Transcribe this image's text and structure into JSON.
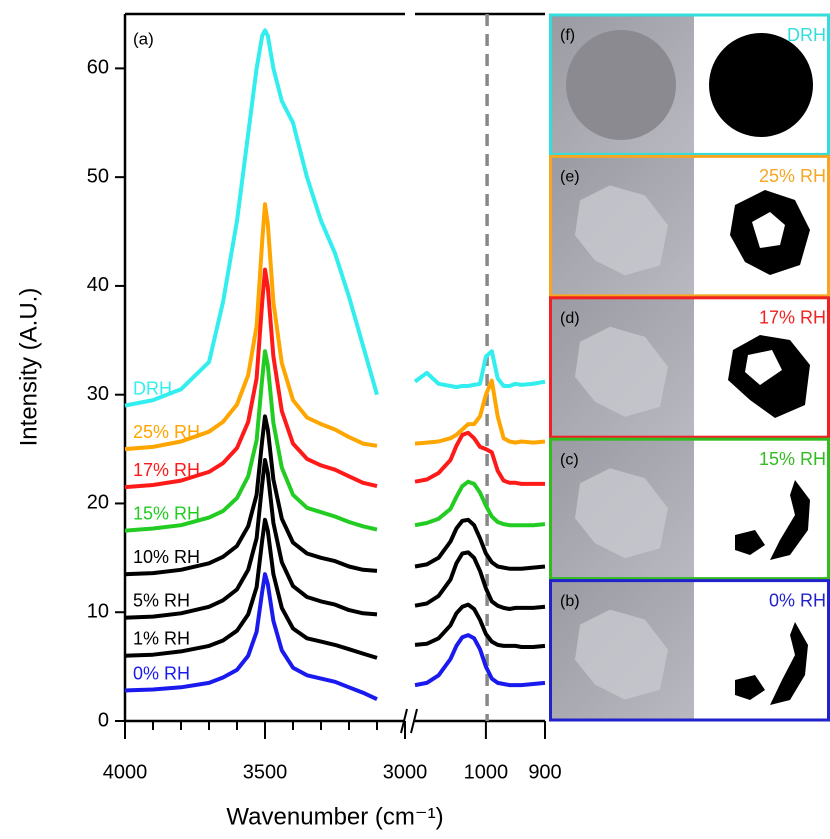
{
  "chart_data": [
    {
      "type": "line",
      "panel_label": "(a)",
      "ylabel": "Intensity (A.U.)",
      "xlabel": "Wavenumber (cm⁻¹)",
      "xlim": [
        4000,
        3000
      ],
      "xticks": [
        4000,
        3500,
        3000
      ],
      "xminorticks": [
        3900,
        3800,
        3700,
        3600,
        3400,
        3300,
        3200,
        3100
      ],
      "ylim": [
        0,
        65
      ],
      "yticks": [
        0,
        10,
        20,
        30,
        40,
        50,
        60
      ],
      "x": [
        4000,
        3900,
        3800,
        3700,
        3650,
        3600,
        3560,
        3530,
        3510,
        3500,
        3490,
        3470,
        3440,
        3400,
        3350,
        3300,
        3250,
        3200,
        3150,
        3100
      ],
      "series": [
        {
          "name": "DRH",
          "color": "#33eeee",
          "values": [
            29,
            29.5,
            30.5,
            33,
            38.5,
            46,
            54,
            60,
            63,
            63.5,
            63,
            60,
            57,
            55,
            50,
            46,
            43,
            39,
            34.5,
            30
          ]
        },
        {
          "name": "25% RH",
          "color": "#ffa500",
          "values": [
            25,
            25.2,
            25.7,
            26.6,
            27.5,
            29.1,
            31.8,
            36.3,
            44.1,
            47.5,
            45.7,
            38.5,
            32.9,
            29.5,
            27.9,
            27.3,
            26.8,
            26.1,
            25.5,
            25.3
          ]
        },
        {
          "name": "17% RH",
          "color": "#ff1a1a",
          "values": [
            21.5,
            21.7,
            22.1,
            22.9,
            23.7,
            25.1,
            27.5,
            31.5,
            38.5,
            41.5,
            39.9,
            33.5,
            28.5,
            25.5,
            24.1,
            23.5,
            23.1,
            22.5,
            21.9,
            21.6
          ]
        },
        {
          "name": "15% RH",
          "color": "#22cc22",
          "values": [
            17.5,
            17.7,
            18,
            18.7,
            19.3,
            20.5,
            22.5,
            25.8,
            31.5,
            34,
            32.7,
            27.4,
            23.3,
            20.8,
            19.6,
            19.2,
            18.8,
            18.3,
            17.9,
            17.6
          ]
        },
        {
          "name": "10% RH",
          "color": "#000000",
          "values": [
            13.5,
            13.6,
            13.9,
            14.5,
            15.1,
            16.1,
            17.9,
            20.8,
            25.8,
            28,
            26.8,
            22.2,
            18.6,
            16.4,
            15.4,
            15,
            14.7,
            14.2,
            13.9,
            13.8
          ]
        },
        {
          "name": "5% RH",
          "color": "#000000",
          "values": [
            9.5,
            9.6,
            9.9,
            10.5,
            11.1,
            12.1,
            13.9,
            16.8,
            21.8,
            24,
            22.8,
            18.2,
            14.6,
            12.4,
            11.4,
            11,
            10.7,
            10.2,
            9.9,
            9.8
          ]
        },
        {
          "name": "1% RH",
          "color": "#000000",
          "values": [
            6,
            6.1,
            6.4,
            6.9,
            7.4,
            8.3,
            9.8,
            12.3,
            16.6,
            18.5,
            17.5,
            13.5,
            10.4,
            8.5,
            7.6,
            7.3,
            7,
            6.6,
            6.2,
            5.8
          ]
        },
        {
          "name": "0% RH",
          "color": "#1a1aee",
          "values": [
            2.8,
            2.9,
            3.1,
            3.5,
            4,
            4.7,
            6,
            8.2,
            11.9,
            13.5,
            12.6,
            9.2,
            6.5,
            4.9,
            4.2,
            3.9,
            3.6,
            3.1,
            2.6,
            2
          ]
        }
      ]
    },
    {
      "type": "line",
      "xlim": [
        1120,
        900
      ],
      "xticks": [
        1000,
        900
      ],
      "ylim": [
        0,
        65
      ],
      "vlines": [
        998
      ],
      "x": [
        1120,
        1100,
        1080,
        1060,
        1050,
        1040,
        1030,
        1020,
        1010,
        1000,
        990,
        980,
        970,
        960,
        950,
        940,
        920,
        900
      ],
      "series": [
        {
          "color": "#33eeee",
          "values": [
            31.2,
            32,
            31,
            30.8,
            30.7,
            30.8,
            30.8,
            30.9,
            31,
            33.5,
            34,
            31.5,
            30.8,
            30.8,
            31,
            30.9,
            31,
            31.2
          ]
        },
        {
          "color": "#ffa500",
          "values": [
            25.5,
            25.6,
            25.7,
            26,
            26.3,
            26.8,
            27.3,
            27.3,
            28,
            30,
            31.3,
            28,
            26,
            25.7,
            25.6,
            25.7,
            25.6,
            25.7
          ]
        },
        {
          "color": "#ff1a1a",
          "values": [
            22,
            22.2,
            22.8,
            24,
            25.3,
            26.3,
            26.5,
            26,
            25.2,
            25,
            24.7,
            23,
            22.1,
            21.9,
            21.9,
            21.8,
            21.8,
            21.8
          ]
        },
        {
          "color": "#22cc22",
          "values": [
            18,
            18.2,
            18.6,
            19.5,
            20.6,
            21.6,
            22,
            21.8,
            21,
            19.8,
            18.8,
            18.3,
            18.1,
            18,
            18,
            18,
            18,
            18.1
          ]
        },
        {
          "color": "#000000",
          "values": [
            14.2,
            14.4,
            15,
            16.5,
            17.7,
            18.4,
            18.5,
            18,
            16.8,
            15.4,
            14.6,
            14.2,
            14.1,
            14,
            14,
            14,
            14.1,
            14.2
          ]
        },
        {
          "color": "#000000",
          "values": [
            10.6,
            10.8,
            11.5,
            13,
            14.5,
            15.4,
            15.5,
            15,
            13.8,
            12.2,
            11,
            10.6,
            10.4,
            10.3,
            10.4,
            10.4,
            10.4,
            10.5
          ]
        },
        {
          "color": "#000000",
          "values": [
            7,
            7.1,
            7.6,
            8.8,
            9.9,
            10.5,
            10.7,
            10.3,
            9.3,
            8,
            7.3,
            7,
            6.9,
            6.9,
            6.9,
            6.8,
            6.8,
            6.9
          ]
        },
        {
          "color": "#1a1aee",
          "values": [
            3.3,
            3.5,
            4.2,
            5.7,
            6.9,
            7.7,
            7.9,
            7.6,
            6.6,
            5,
            3.9,
            3.5,
            3.4,
            3.3,
            3.3,
            3.3,
            3.4,
            3.5
          ]
        }
      ]
    }
  ],
  "panels": [
    {
      "letter": "(f)",
      "label": "DRH",
      "color": "#33dddd"
    },
    {
      "letter": "(e)",
      "label": "25% RH",
      "color": "#f5a623"
    },
    {
      "letter": "(d)",
      "label": "17% RH",
      "color": "#ee2222"
    },
    {
      "letter": "(c)",
      "label": "15% RH",
      "color": "#33bb22"
    },
    {
      "letter": "(b)",
      "label": "0% RH",
      "color": "#2222cc"
    }
  ]
}
